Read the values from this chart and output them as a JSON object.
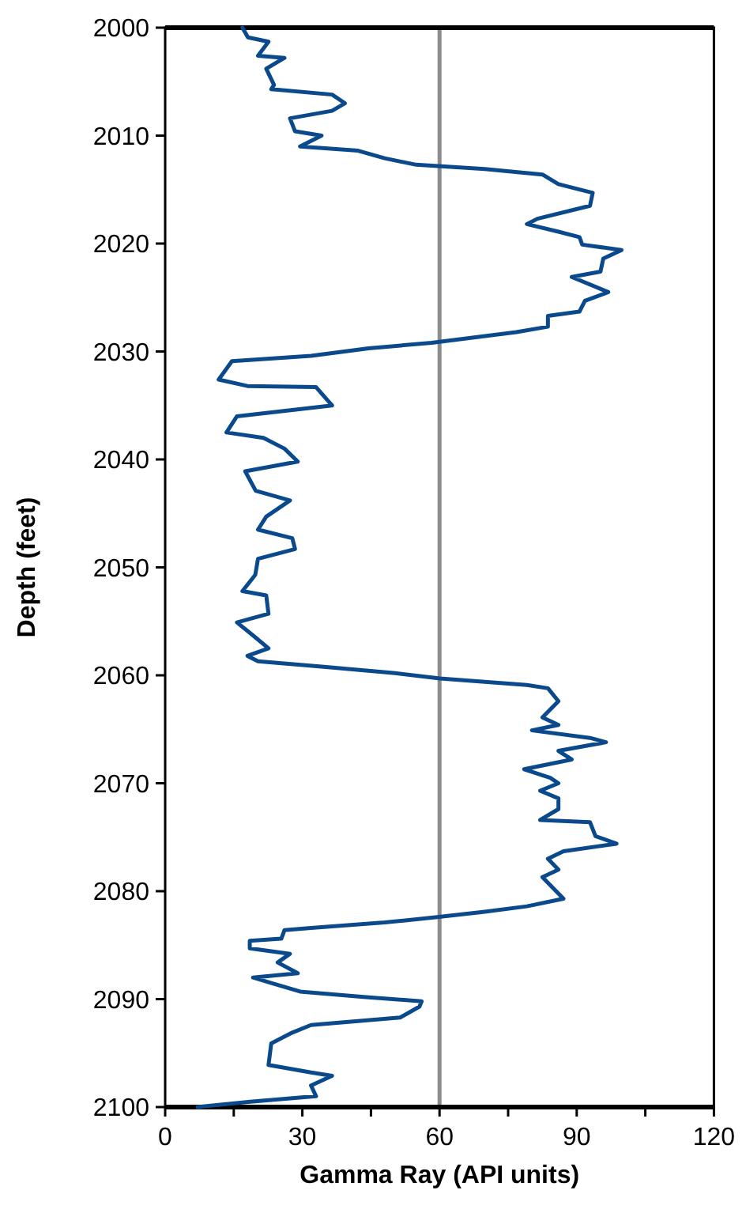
{
  "chart_data": {
    "type": "line",
    "xlabel": "Gamma Ray (API units)",
    "ylabel": "Depth (feet)",
    "xlim": [
      0,
      120
    ],
    "xticks": [
      0,
      {
        "value": 15,
        "label": null
      },
      30,
      {
        "value": 45,
        "label": null
      },
      60,
      {
        "value": 75,
        "label": null
      },
      90,
      {
        "value": 105,
        "label": null
      },
      120
    ],
    "ylim": [
      2100,
      2000
    ],
    "yticks": [
      2000,
      2010,
      2020,
      2030,
      2040,
      2050,
      2060,
      2070,
      2080,
      2090,
      2100
    ],
    "ref_lines": [
      {
        "axis": "x",
        "value": 60,
        "color": "#8c8c8c"
      }
    ],
    "series": [
      {
        "color": "#0a4a8c",
        "x": [
          16.9,
          18.1,
          22.6,
          20.3,
          26.1,
          22.1,
          23.8,
          23.2,
          36.5,
          39.3,
          36.5,
          27.3,
          28.4,
          34.2,
          29.5,
          42.2,
          48.0,
          54.9,
          69.9,
          82.5,
          86.0,
          93.5,
          92.9,
          81.4,
          79.1,
          86.0,
          90.6,
          91.2,
          99.8,
          95.8,
          95.2,
          88.9,
          96.9,
          91.8,
          90.6,
          83.7,
          83.7,
          76.8,
          58.3,
          44.5,
          31.9,
          14.6,
          11.7,
          18.0,
          33.0,
          36.5,
          15.7,
          13.4,
          21.5,
          26.1,
          29.0,
          17.5,
          19.8,
          27.3,
          22.1,
          20.3,
          27.8,
          28.4,
          20.3,
          19.7,
          16.9,
          22.1,
          22.6,
          15.7,
          19.2,
          22.6,
          18.0,
          20.3,
          34.2,
          50.3,
          60.1,
          79.1,
          83.7,
          86.0,
          82.5,
          86.0,
          80.2,
          92.9,
          96.4,
          86.0,
          88.9,
          78.5,
          84.2,
          86.0,
          82.0,
          86.0,
          86.0,
          82.0,
          92.9,
          94.1,
          98.7,
          87.1,
          83.7,
          86.0,
          82.5,
          87.1,
          79.1,
          69.9,
          59.5,
          48.0,
          31.9,
          26.1,
          25.4,
          18.5,
          18.5,
          27.3,
          24.6,
          29.0,
          19.2,
          23.2,
          29.5,
          43.4,
          56.1,
          55.6,
          51.4,
          31.9,
          27.8,
          23.2,
          22.6,
          31.9,
          36.5,
          31.9,
          33.0,
          18.6,
          7.1
        ],
        "values": [
          2000,
          2000.9,
          2001.3,
          2002.6,
          2002.8,
          2003.8,
          2005.3,
          2005.7,
          2006.2,
          2007.0,
          2007.7,
          2008.4,
          2009.6,
          2010.0,
          2011.0,
          2011.4,
          2012.1,
          2012.7,
          2013.1,
          2013.6,
          2014.5,
          2015.3,
          2016.5,
          2017.7,
          2018.2,
          2018.9,
          2019.4,
          2020.1,
          2020.6,
          2021.4,
          2022.6,
          2023.1,
          2024.5,
          2025.3,
          2026.3,
          2026.7,
          2027.7,
          2028.2,
          2029.2,
          2029.7,
          2030.4,
          2030.9,
          2032.6,
          2033.2,
          2033.3,
          2035.0,
          2036.0,
          2037.5,
          2038.0,
          2039.0,
          2040.2,
          2041.1,
          2042.9,
          2043.8,
          2045.3,
          2046.5,
          2047.3,
          2048.3,
          2049.2,
          2050.7,
          2052.2,
          2052.6,
          2054.3,
          2055.1,
          2056.3,
          2057.5,
          2058.2,
          2058.7,
          2059.2,
          2059.8,
          2060.3,
          2060.9,
          2061.2,
          2062.4,
          2063.9,
          2064.6,
          2065.1,
          2065.8,
          2066.2,
          2067.0,
          2067.8,
          2068.7,
          2069.5,
          2070.0,
          2070.7,
          2071.4,
          2072.4,
          2073.4,
          2073.6,
          2074.9,
          2075.6,
          2076.3,
          2077.0,
          2078.0,
          2078.7,
          2080.7,
          2081.4,
          2081.9,
          2082.4,
          2082.9,
          2083.4,
          2083.6,
          2084.4,
          2084.6,
          2085.3,
          2085.8,
          2086.6,
          2087.6,
          2088.0,
          2088.5,
          2089.3,
          2089.8,
          2090.2,
          2090.7,
          2091.7,
          2092.4,
          2093.1,
          2094.1,
          2096.1,
          2096.8,
          2097.1,
          2098.0,
          2099.0,
          2099.5,
          2100
        ]
      }
    ]
  }
}
